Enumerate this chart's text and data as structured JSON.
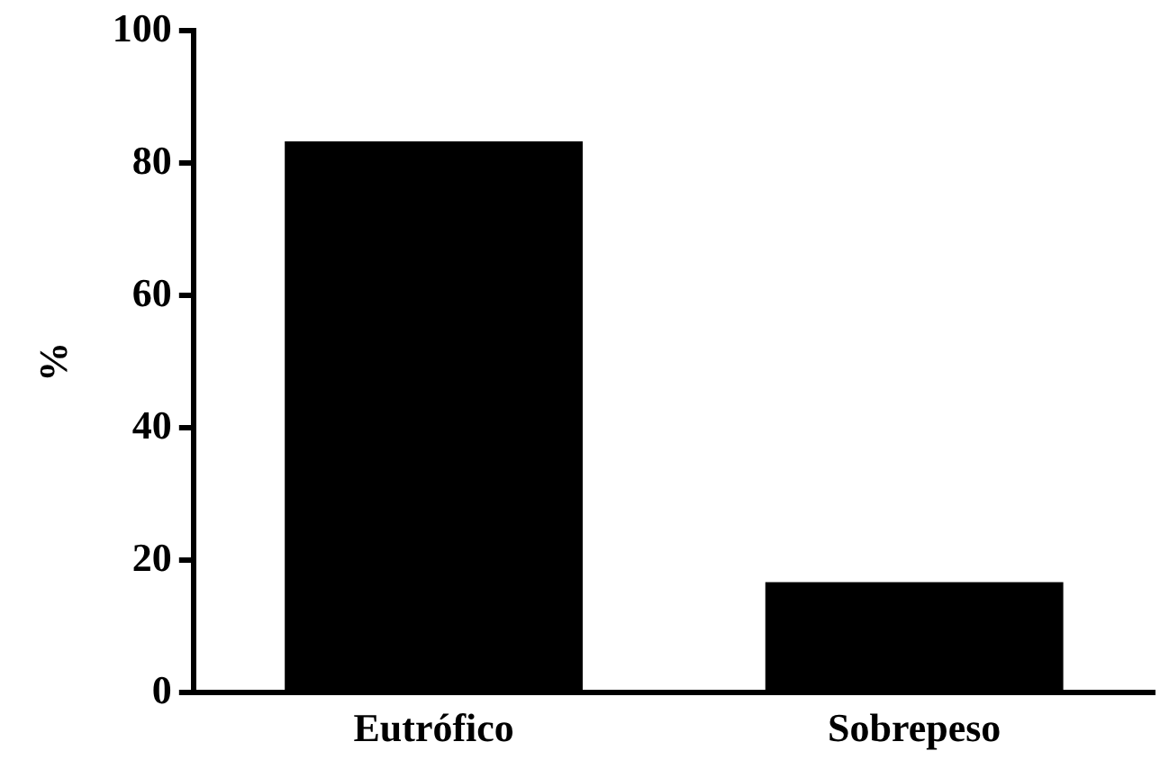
{
  "chart_data": {
    "type": "bar",
    "ylabel": "%",
    "categories": [
      "Eutrófico",
      "Sobrepeso"
    ],
    "values": [
      83.3,
      16.7
    ],
    "color": "#000000",
    "ylim": [
      0,
      100
    ],
    "yticks": [
      0,
      20,
      40,
      60,
      80,
      100
    ],
    "grid": false,
    "legend": false
  }
}
